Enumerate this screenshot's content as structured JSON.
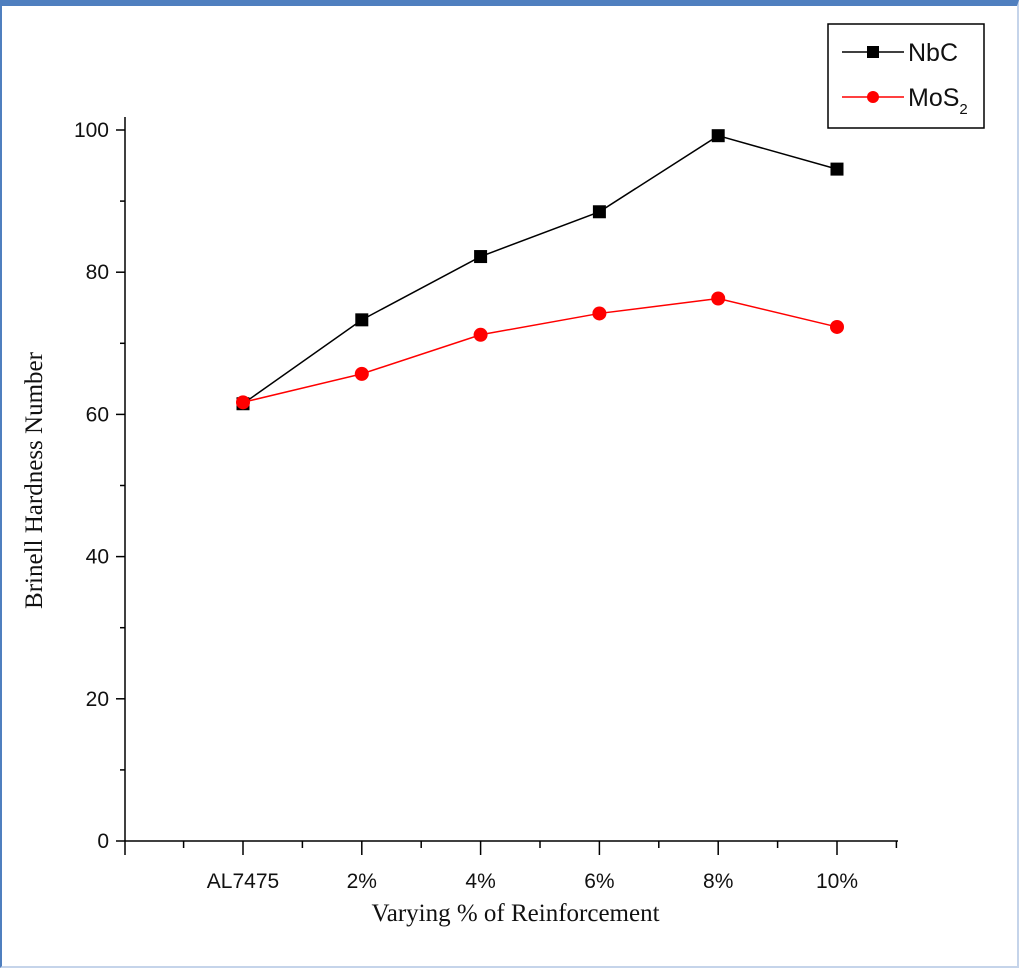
{
  "chart_data": {
    "type": "line",
    "categories": [
      "AL7475",
      "2%",
      "4%",
      "6%",
      "8%",
      "10%"
    ],
    "series": [
      {
        "name": "NbC",
        "values": [
          61.5,
          73.3,
          82.2,
          88.5,
          99.2,
          94.5
        ],
        "color": "#000000",
        "marker": "square"
      },
      {
        "name": "MoS2",
        "name_main": "MoS",
        "name_sub": "2",
        "values": [
          61.7,
          65.7,
          71.2,
          74.2,
          76.3,
          72.3
        ],
        "color": "#ff0000",
        "marker": "circle"
      }
    ],
    "xlabel": "Varying % of Reinforcement",
    "ylabel": "Brinell Hardness Number",
    "ylim": [
      0,
      100
    ],
    "yticks": [
      0,
      20,
      40,
      60,
      80,
      100
    ],
    "grid": false,
    "legend_position": "top-right"
  }
}
